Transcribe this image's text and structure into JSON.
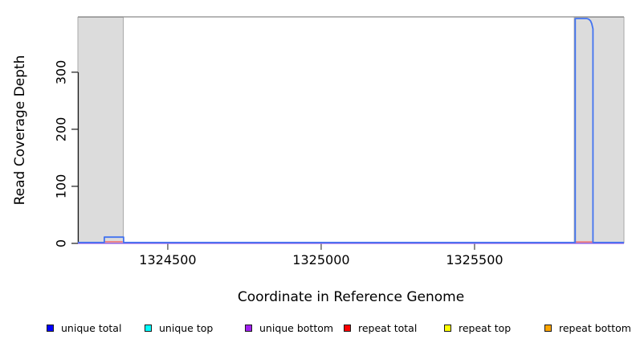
{
  "chart_data": {
    "type": "line",
    "title": "",
    "xlabel": "Coordinate in Reference Genome",
    "ylabel": "Read Coverage Depth",
    "grid": false,
    "legend_position": "bottom",
    "x_axis": {
      "min": 1324207,
      "max": 1325987,
      "ticks": [
        1324500,
        1325000,
        1325500
      ],
      "tick_labels": [
        "1324500",
        "1325000",
        "1325500"
      ]
    },
    "y_axis": {
      "min": 0,
      "max": 397,
      "ticks": [
        0,
        100,
        200,
        300
      ],
      "tick_labels": [
        "0",
        "100",
        "200",
        "300"
      ]
    },
    "shaded_regions": [
      {
        "x_start": 1324207,
        "x_end": 1324355,
        "fill": "#dcdcdc",
        "border": "#a8a8a8"
      },
      {
        "x_start": 1325825,
        "x_end": 1325987,
        "fill": "#dcdcdc",
        "border": "#a8a8a8"
      }
    ],
    "series": [
      {
        "name": "unique bottom",
        "stroke": "#a06ce8",
        "stroke_width": 1.6,
        "points": [
          [
            1324207,
            0
          ],
          [
            1325987,
            0
          ]
        ]
      },
      {
        "name": "repeat total",
        "stroke": "#f07878",
        "stroke_width": 1.6,
        "segments": [
          [
            [
              1324295,
              3
            ],
            [
              1324353,
              3
            ]
          ],
          [
            [
              1325830,
              2.5
            ],
            [
              1325884,
              2.5
            ]
          ]
        ]
      },
      {
        "name": "unique total",
        "stroke": "#4273f0",
        "stroke_width": 1.8,
        "points": [
          [
            1324207,
            1.5
          ],
          [
            1324293,
            1.5
          ],
          [
            1324293,
            11
          ],
          [
            1324356,
            11
          ],
          [
            1324356,
            1.5
          ],
          [
            1325828,
            1.5
          ],
          [
            1325828,
            394
          ],
          [
            1325866,
            394
          ],
          [
            1325872,
            393
          ],
          [
            1325878,
            390
          ],
          [
            1325882,
            385
          ],
          [
            1325886,
            376
          ],
          [
            1325886,
            1.5
          ],
          [
            1325987,
            1.5
          ]
        ]
      }
    ],
    "legend": [
      {
        "label": "unique total",
        "color": "#0000ff"
      },
      {
        "label": "unique top",
        "color": "#00ffff"
      },
      {
        "label": "unique bottom",
        "color": "#a020f0"
      },
      {
        "label": "repeat total",
        "color": "#ff0000"
      },
      {
        "label": "repeat top",
        "color": "#ffff00"
      },
      {
        "label": "repeat bottom",
        "color": "#ffa500"
      }
    ],
    "frame": {
      "top_border_color": "#8a8a8a",
      "axis_color": "#1a1a1a",
      "tick_color": "#444444"
    }
  }
}
